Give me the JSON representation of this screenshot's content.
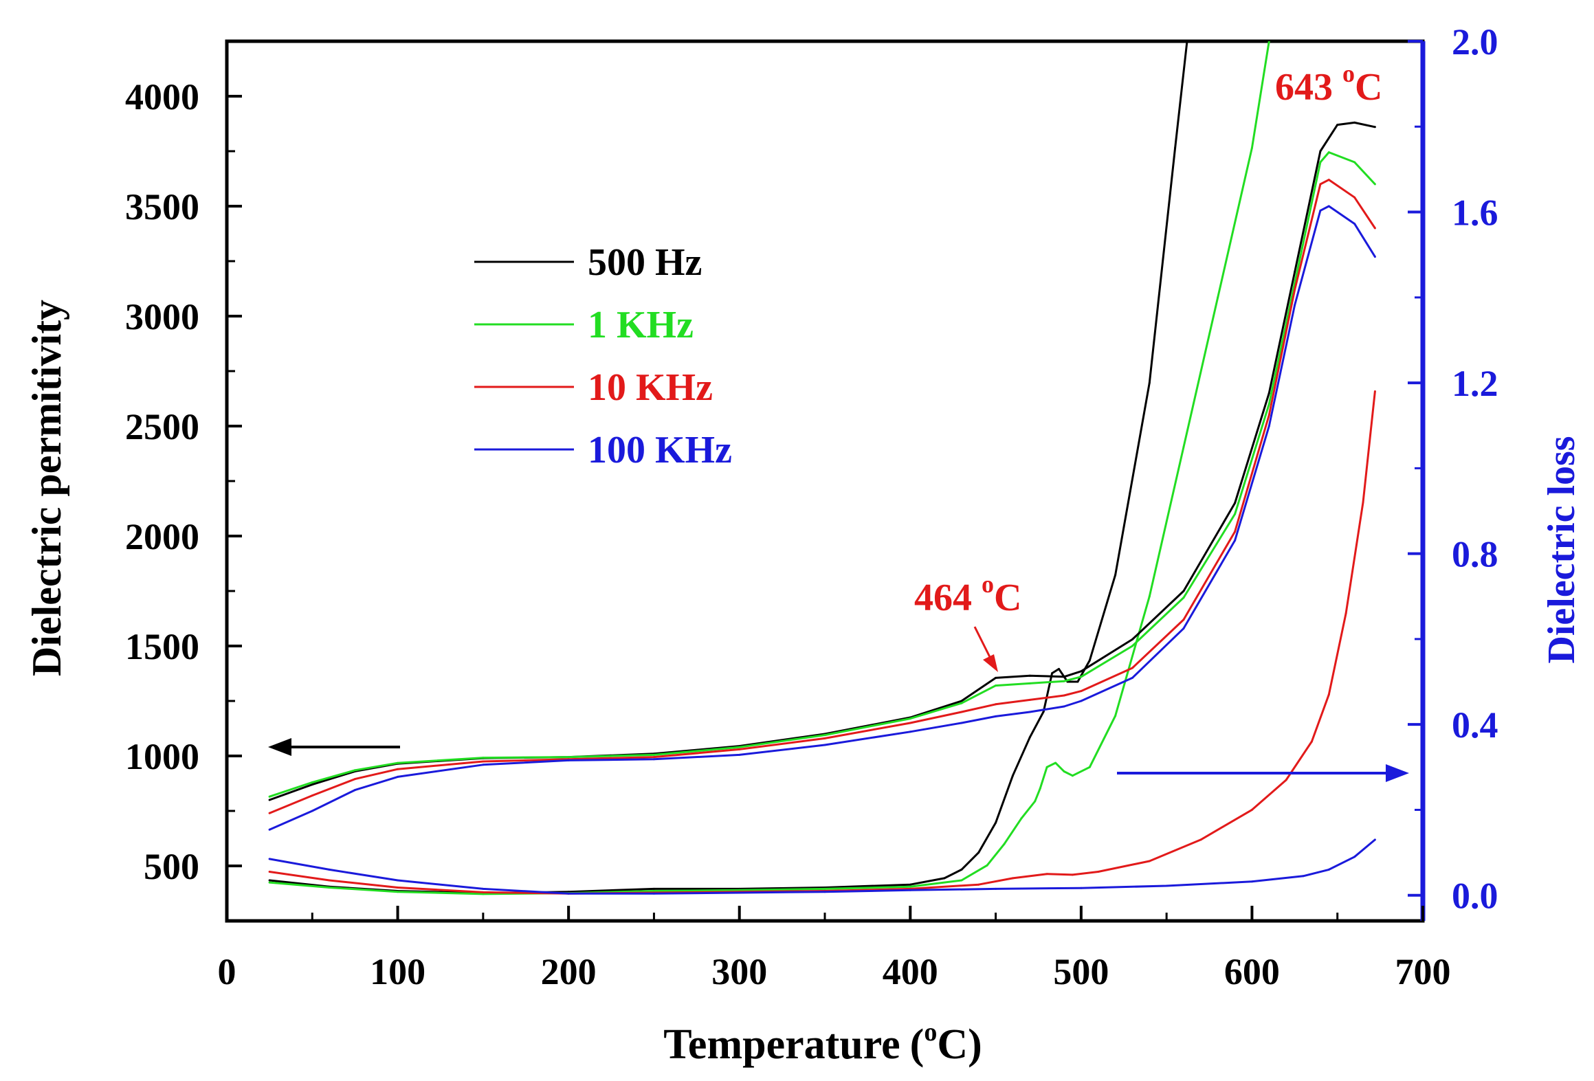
{
  "chart_data": {
    "type": "line",
    "xlabel": "Temperature",
    "xlabel_unit_prefix": "(",
    "xlabel_unit_sup": "o",
    "xlabel_unit_suffix": "C)",
    "ylabel_left": "Dielectric permitivity",
    "ylabel_right": "Dielectric loss",
    "xlim": [
      0,
      700
    ],
    "ylim_left": [
      250,
      4250
    ],
    "ylim_right": [
      -0.06,
      2.0
    ],
    "x_ticks": [
      0,
      100,
      200,
      300,
      400,
      500,
      600,
      700
    ],
    "x_tick_labels": [
      "0",
      "100",
      "200",
      "300",
      "400",
      "500",
      "600",
      "700"
    ],
    "y_left_ticks": [
      500,
      1000,
      1500,
      2000,
      2500,
      3000,
      3500,
      4000
    ],
    "y_left_tick_labels": [
      "500",
      "1000",
      "1500",
      "2000",
      "2500",
      "3000",
      "3500",
      "4000"
    ],
    "y_right_ticks": [
      0.0,
      0.4,
      0.8,
      1.2,
      1.6,
      2.0
    ],
    "y_right_tick_labels": [
      "0.0",
      "0.4",
      "0.8",
      "1.2",
      "1.6",
      "2.0"
    ],
    "right_axis_color": "#1a1adb",
    "legend_position": "upper-left",
    "permittivity_series": [
      {
        "name": "500 Hz",
        "color": "#000000",
        "axis": "left",
        "points": [
          [
            25,
            800
          ],
          [
            50,
            870
          ],
          [
            75,
            930
          ],
          [
            100,
            965
          ],
          [
            150,
            990
          ],
          [
            200,
            995
          ],
          [
            250,
            1010
          ],
          [
            300,
            1045
          ],
          [
            350,
            1100
          ],
          [
            400,
            1175
          ],
          [
            430,
            1250
          ],
          [
            450,
            1355
          ],
          [
            470,
            1365
          ],
          [
            490,
            1360
          ],
          [
            500,
            1385
          ],
          [
            530,
            1530
          ],
          [
            560,
            1750
          ],
          [
            590,
            2150
          ],
          [
            610,
            2650
          ],
          [
            625,
            3200
          ],
          [
            640,
            3750
          ],
          [
            650,
            3870
          ],
          [
            660,
            3880
          ],
          [
            672,
            3860
          ]
        ]
      },
      {
        "name": "1 KHz",
        "color": "#22dd22",
        "axis": "left",
        "points": [
          [
            25,
            815
          ],
          [
            50,
            880
          ],
          [
            75,
            935
          ],
          [
            100,
            968
          ],
          [
            150,
            992
          ],
          [
            200,
            995
          ],
          [
            250,
            1005
          ],
          [
            300,
            1040
          ],
          [
            350,
            1095
          ],
          [
            400,
            1170
          ],
          [
            430,
            1240
          ],
          [
            450,
            1320
          ],
          [
            470,
            1330
          ],
          [
            490,
            1340
          ],
          [
            500,
            1360
          ],
          [
            530,
            1500
          ],
          [
            560,
            1720
          ],
          [
            590,
            2100
          ],
          [
            610,
            2600
          ],
          [
            625,
            3150
          ],
          [
            640,
            3700
          ],
          [
            645,
            3745
          ],
          [
            660,
            3700
          ],
          [
            672,
            3600
          ]
        ]
      },
      {
        "name": "10 KHz",
        "color": "#e21a1a",
        "axis": "left",
        "points": [
          [
            25,
            740
          ],
          [
            50,
            820
          ],
          [
            75,
            895
          ],
          [
            100,
            940
          ],
          [
            150,
            975
          ],
          [
            200,
            985
          ],
          [
            250,
            995
          ],
          [
            300,
            1030
          ],
          [
            350,
            1080
          ],
          [
            400,
            1150
          ],
          [
            430,
            1200
          ],
          [
            450,
            1235
          ],
          [
            470,
            1255
          ],
          [
            490,
            1275
          ],
          [
            500,
            1295
          ],
          [
            530,
            1400
          ],
          [
            560,
            1620
          ],
          [
            590,
            2020
          ],
          [
            610,
            2550
          ],
          [
            625,
            3120
          ],
          [
            640,
            3600
          ],
          [
            645,
            3620
          ],
          [
            660,
            3540
          ],
          [
            672,
            3400
          ]
        ]
      },
      {
        "name": "100 KHz",
        "color": "#1a1adb",
        "axis": "left",
        "points": [
          [
            25,
            665
          ],
          [
            50,
            750
          ],
          [
            75,
            845
          ],
          [
            100,
            905
          ],
          [
            150,
            960
          ],
          [
            200,
            980
          ],
          [
            250,
            985
          ],
          [
            300,
            1005
          ],
          [
            350,
            1050
          ],
          [
            400,
            1110
          ],
          [
            430,
            1150
          ],
          [
            450,
            1180
          ],
          [
            470,
            1200
          ],
          [
            490,
            1225
          ],
          [
            500,
            1250
          ],
          [
            530,
            1355
          ],
          [
            560,
            1580
          ],
          [
            590,
            1980
          ],
          [
            610,
            2500
          ],
          [
            625,
            3050
          ],
          [
            640,
            3480
          ],
          [
            645,
            3500
          ],
          [
            660,
            3420
          ],
          [
            672,
            3270
          ]
        ]
      }
    ],
    "loss_series": [
      {
        "name": "500 Hz",
        "color": "#000000",
        "axis": "right",
        "points": [
          [
            25,
            0.035
          ],
          [
            60,
            0.02
          ],
          [
            100,
            0.01
          ],
          [
            150,
            0.005
          ],
          [
            200,
            0.008
          ],
          [
            250,
            0.015
          ],
          [
            300,
            0.015
          ],
          [
            350,
            0.018
          ],
          [
            400,
            0.025
          ],
          [
            420,
            0.04
          ],
          [
            430,
            0.06
          ],
          [
            440,
            0.1
          ],
          [
            450,
            0.17
          ],
          [
            460,
            0.28
          ],
          [
            470,
            0.37
          ],
          [
            478,
            0.43
          ],
          [
            483,
            0.52
          ],
          [
            487,
            0.53
          ],
          [
            492,
            0.5
          ],
          [
            498,
            0.5
          ],
          [
            505,
            0.55
          ],
          [
            520,
            0.75
          ],
          [
            540,
            1.2
          ],
          [
            555,
            1.75
          ],
          [
            562,
            2.0
          ]
        ]
      },
      {
        "name": "1 KHz",
        "color": "#22dd22",
        "axis": "right",
        "points": [
          [
            25,
            0.03
          ],
          [
            60,
            0.018
          ],
          [
            100,
            0.008
          ],
          [
            150,
            0.003
          ],
          [
            200,
            0.005
          ],
          [
            250,
            0.01
          ],
          [
            300,
            0.012
          ],
          [
            350,
            0.015
          ],
          [
            400,
            0.02
          ],
          [
            430,
            0.035
          ],
          [
            445,
            0.07
          ],
          [
            455,
            0.12
          ],
          [
            465,
            0.18
          ],
          [
            473,
            0.22
          ],
          [
            476,
            0.25
          ],
          [
            480,
            0.3
          ],
          [
            485,
            0.31
          ],
          [
            490,
            0.29
          ],
          [
            495,
            0.28
          ],
          [
            505,
            0.3
          ],
          [
            520,
            0.42
          ],
          [
            540,
            0.7
          ],
          [
            560,
            1.05
          ],
          [
            580,
            1.4
          ],
          [
            600,
            1.75
          ],
          [
            610,
            2.0
          ]
        ]
      },
      {
        "name": "10 KHz",
        "color": "#e21a1a",
        "axis": "right",
        "points": [
          [
            25,
            0.055
          ],
          [
            60,
            0.035
          ],
          [
            100,
            0.018
          ],
          [
            150,
            0.007
          ],
          [
            200,
            0.004
          ],
          [
            250,
            0.006
          ],
          [
            300,
            0.008
          ],
          [
            350,
            0.01
          ],
          [
            400,
            0.015
          ],
          [
            440,
            0.025
          ],
          [
            460,
            0.04
          ],
          [
            480,
            0.05
          ],
          [
            495,
            0.048
          ],
          [
            510,
            0.055
          ],
          [
            540,
            0.08
          ],
          [
            570,
            0.13
          ],
          [
            600,
            0.2
          ],
          [
            620,
            0.27
          ],
          [
            635,
            0.36
          ],
          [
            645,
            0.47
          ],
          [
            655,
            0.66
          ],
          [
            665,
            0.92
          ],
          [
            672,
            1.18
          ]
        ]
      },
      {
        "name": "100 KHz",
        "color": "#1a1adb",
        "axis": "right",
        "points": [
          [
            25,
            0.085
          ],
          [
            60,
            0.06
          ],
          [
            100,
            0.035
          ],
          [
            150,
            0.015
          ],
          [
            200,
            0.004
          ],
          [
            250,
            0.004
          ],
          [
            300,
            0.006
          ],
          [
            350,
            0.008
          ],
          [
            400,
            0.012
          ],
          [
            450,
            0.015
          ],
          [
            500,
            0.017
          ],
          [
            550,
            0.022
          ],
          [
            600,
            0.032
          ],
          [
            630,
            0.045
          ],
          [
            645,
            0.06
          ],
          [
            660,
            0.09
          ],
          [
            672,
            0.13
          ]
        ]
      }
    ],
    "annotations": [
      {
        "label": "464 ",
        "sup": "o",
        "suffix": "C",
        "color": "#e21a1a",
        "at_x": 464,
        "at_y_left": 1400
      },
      {
        "label": "643 ",
        "sup": "o",
        "suffix": "C",
        "color": "#e21a1a",
        "at_x": 643,
        "at_y_left": 4100
      }
    ],
    "axis_arrows": [
      {
        "points_to": "left axis",
        "color": "#000000",
        "from_x": 100,
        "to_x": 25,
        "at_y_left": 1040
      },
      {
        "points_to": "right axis",
        "color": "#1a1adb",
        "from_x": 520,
        "to_x": 690,
        "at_y_left": 790
      }
    ]
  }
}
